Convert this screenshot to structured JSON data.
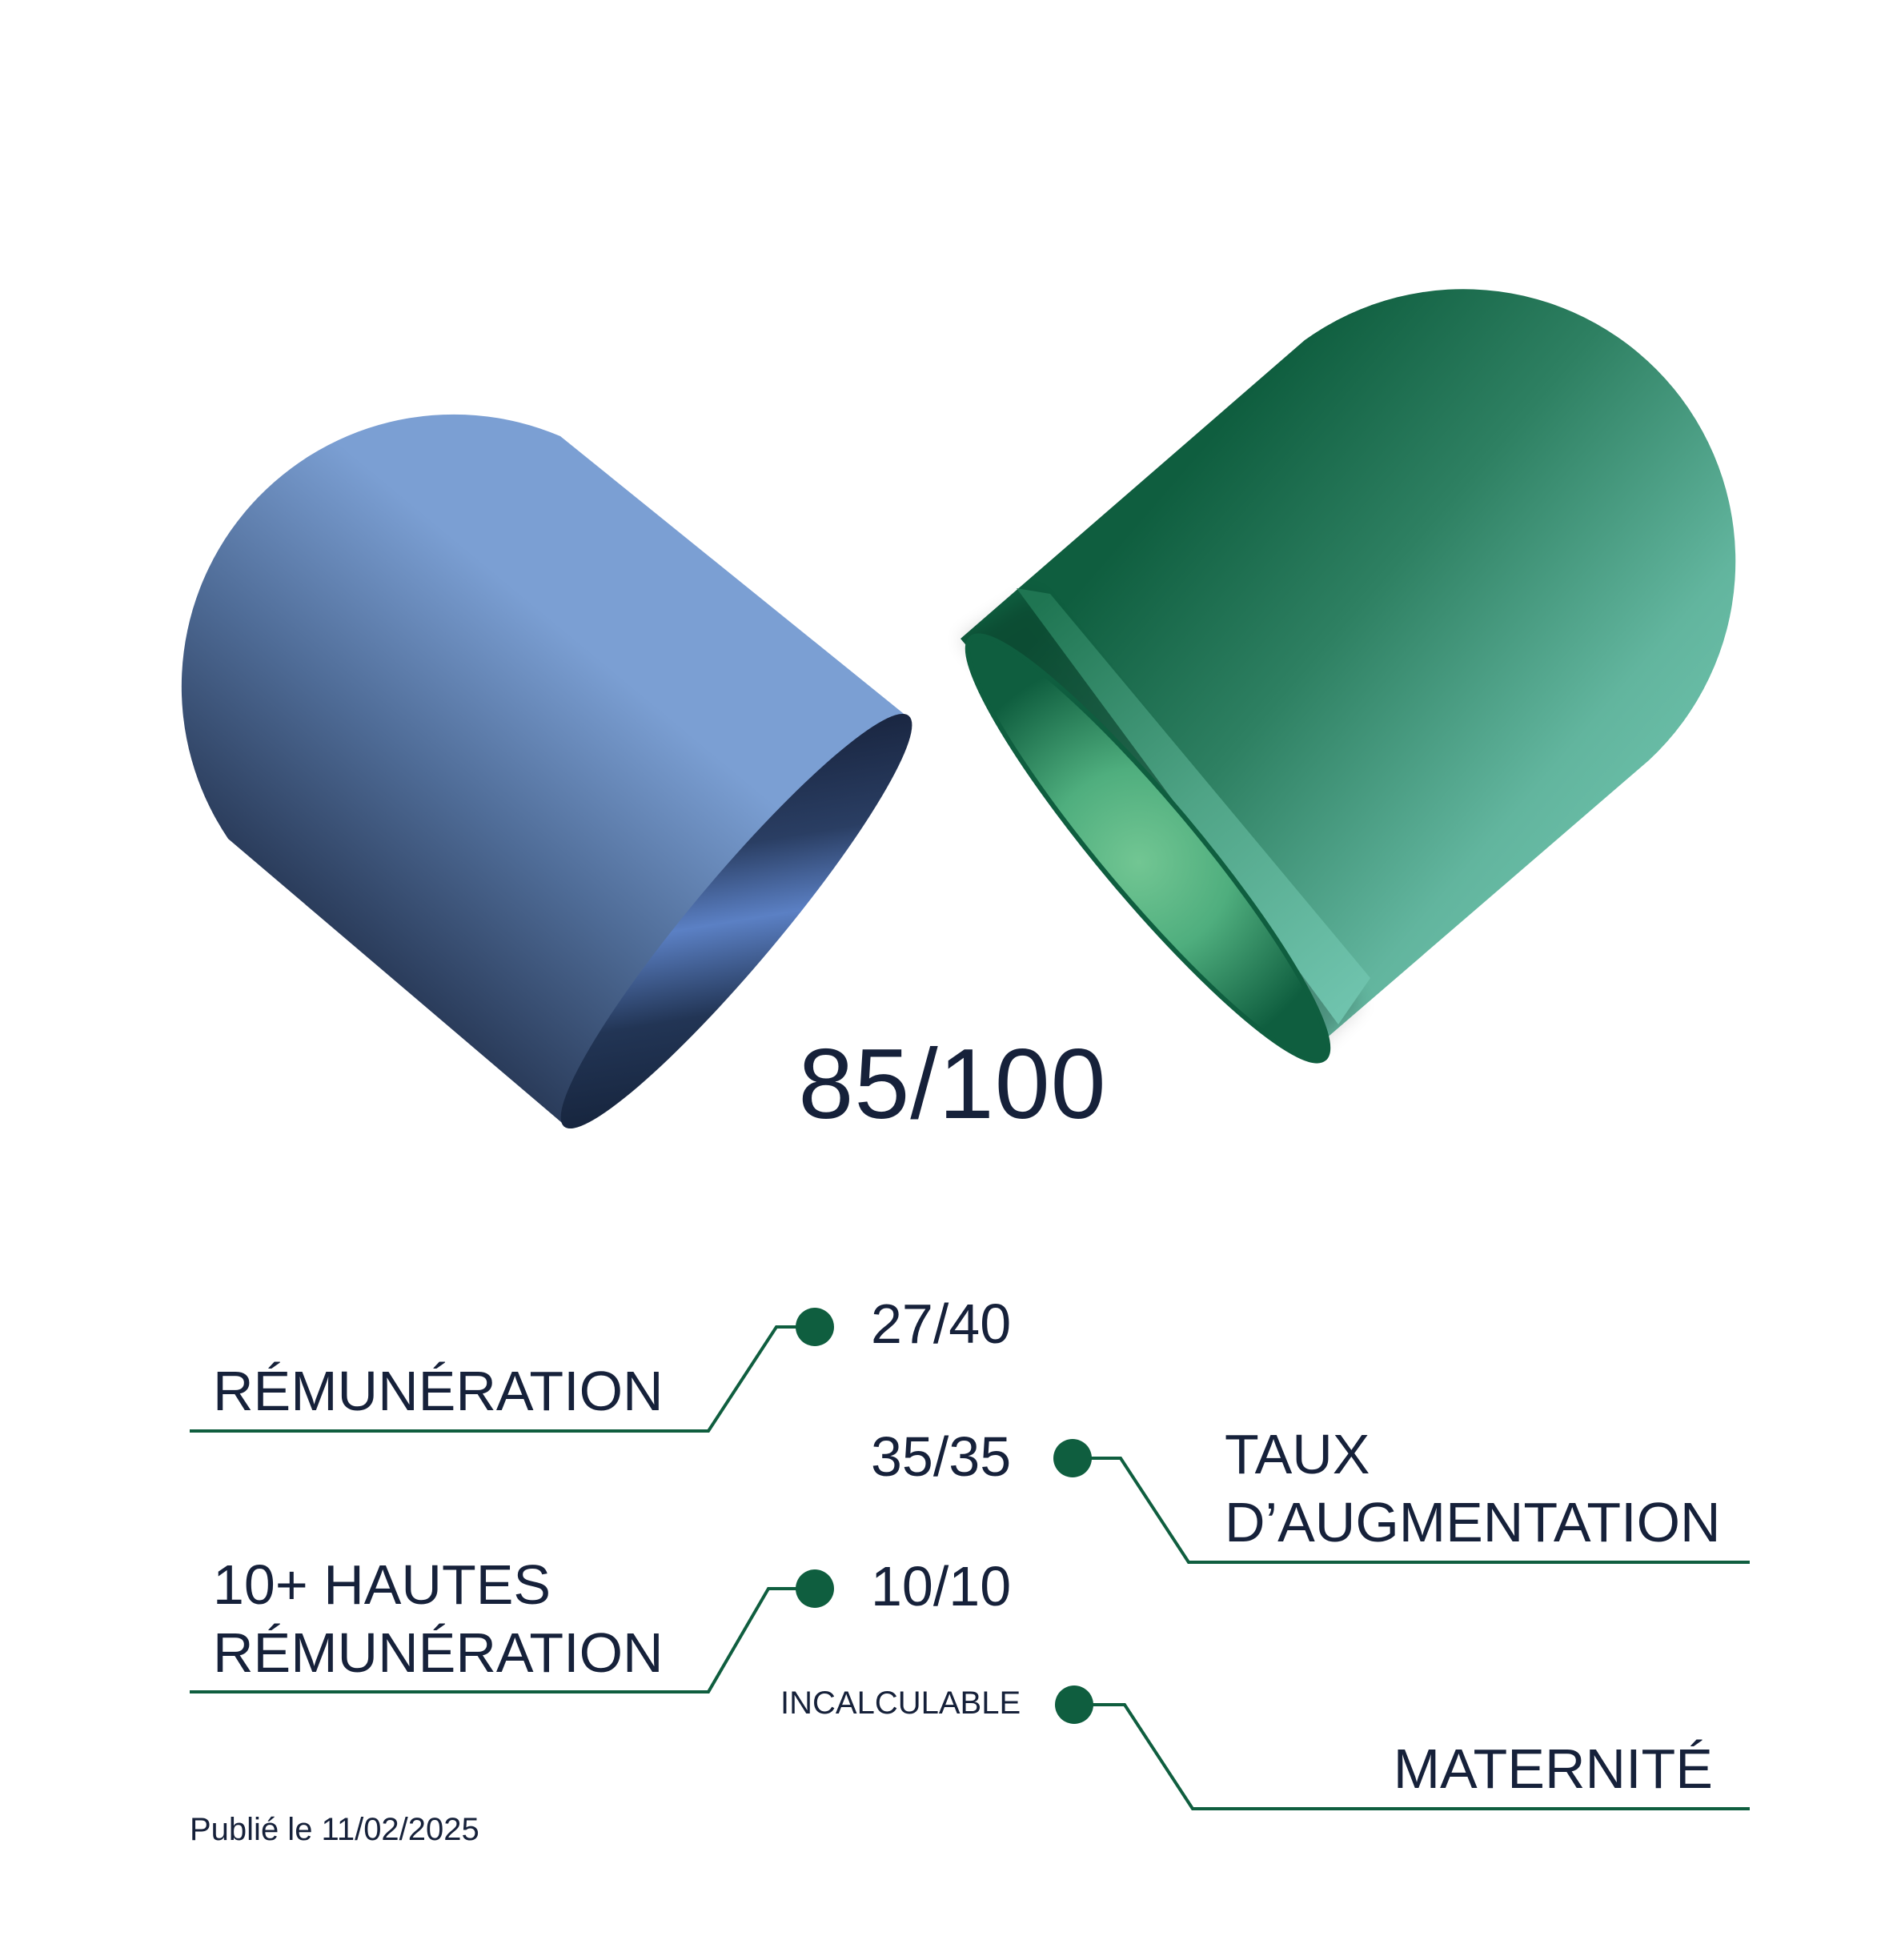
{
  "colors": {
    "text": "#16213a",
    "accent": "#0f5e3f",
    "blue_light": "#7b9fd3",
    "blue_dark": "#16213a",
    "green_light": "#6fc3ad",
    "green_dark": "#0f5e3f"
  },
  "header": {
    "total_score": "85/100"
  },
  "indicators": [
    {
      "label": "RÉMUNÉRATION",
      "score": "27/40"
    },
    {
      "label_line1": "TAUX",
      "label_line2": "D’AUGMENTATION",
      "score": "35/35"
    },
    {
      "label_line1": "10+ HAUTES",
      "label_line2": "RÉMUNÉRATION",
      "score": "10/10"
    },
    {
      "label": "MATERNITÉ",
      "score": "INCALCULABLE"
    }
  ],
  "footer": {
    "published": "Publié le 11/02/2025"
  }
}
